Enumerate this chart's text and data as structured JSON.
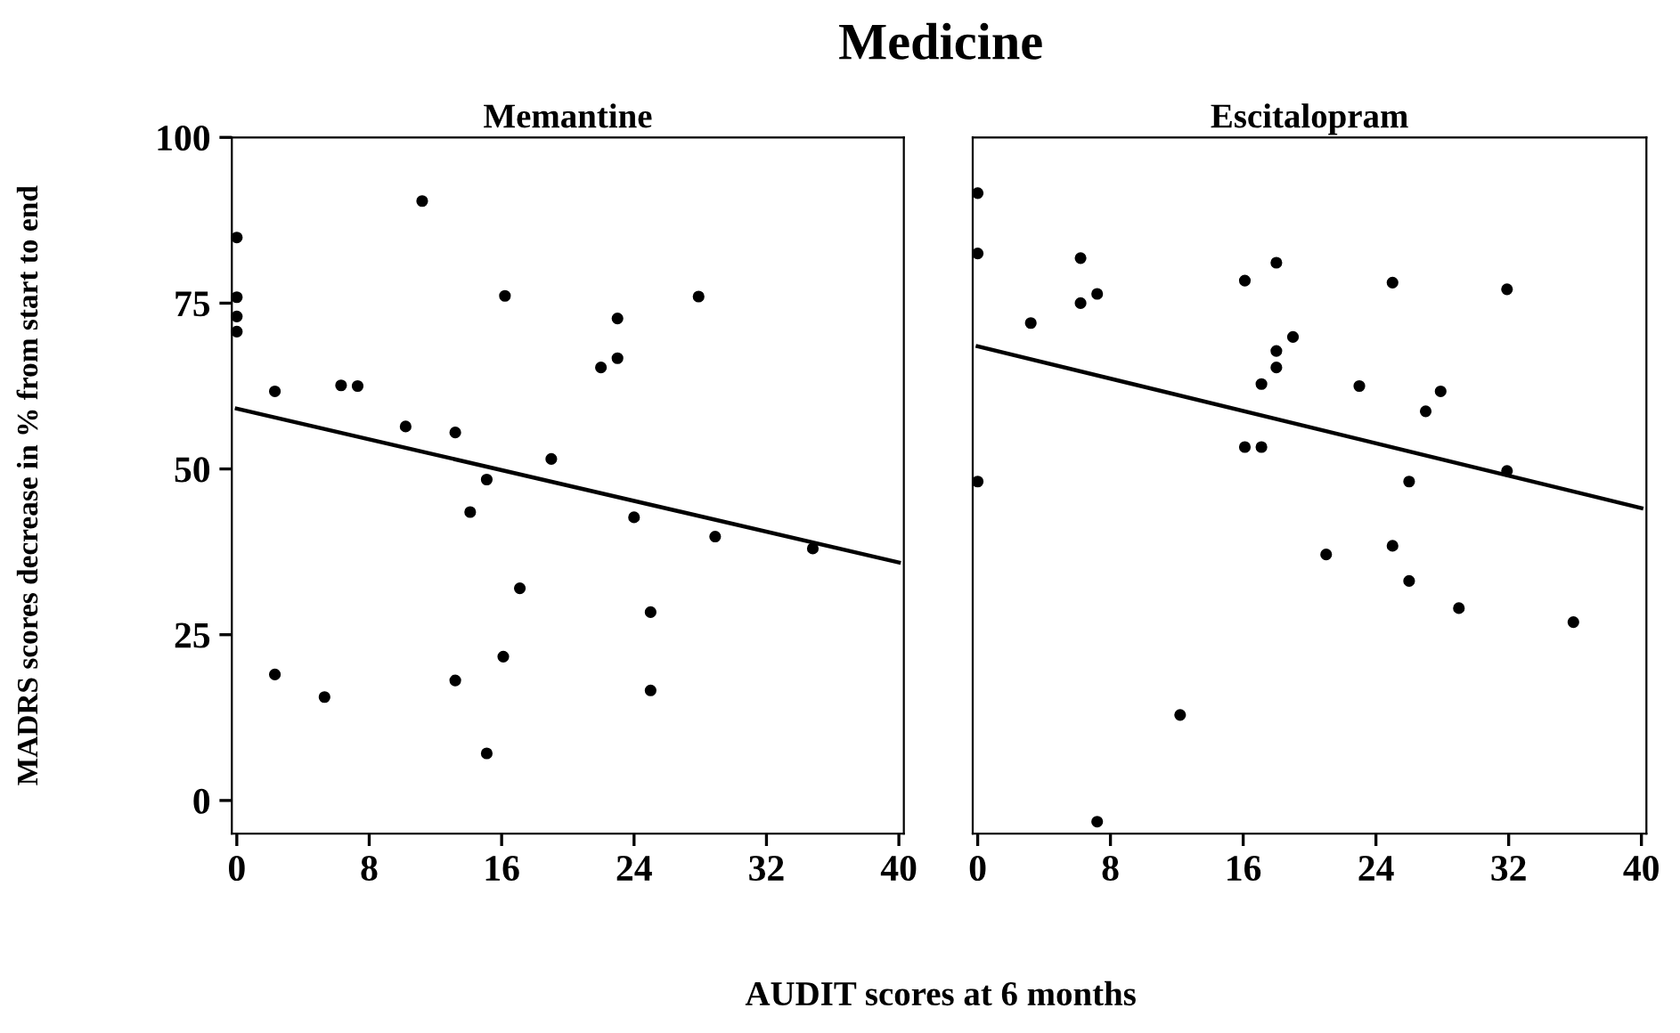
{
  "chart_data": [
    {
      "type": "scatter",
      "title": "Memantine",
      "xlabel": "AUDIT scores at 6 months",
      "ylabel": "MADRS scores decrease in % from start to end",
      "annotations": [
        "Medicine"
      ],
      "xlim": [
        -0.3,
        40.3
      ],
      "ylim": [
        -5,
        100
      ],
      "xticks": [
        0,
        8,
        16,
        24,
        32,
        40
      ],
      "yticks": [
        0,
        25,
        50,
        75,
        100
      ],
      "grid": false,
      "legend": false,
      "series": [
        {
          "marker": "circle",
          "color": "#000000",
          "x": [
            11.2,
            0,
            0,
            0,
            0,
            16.2,
            27.9,
            23.0,
            23.0,
            22.0,
            2.3,
            6.3,
            7.3,
            10.2,
            13.2,
            19.0,
            15.1,
            14.1,
            24.0,
            28.9,
            34.8,
            17.1,
            25.0,
            16.1,
            2.3,
            13.2,
            5.3,
            25.0,
            15.1
          ],
          "values": [
            90.4,
            84.9,
            75.9,
            73.0,
            70.7,
            76.1,
            76.0,
            72.7,
            66.7,
            65.3,
            61.7,
            62.6,
            62.5,
            56.4,
            55.5,
            51.5,
            48.4,
            43.5,
            42.7,
            39.8,
            38.0,
            32.0,
            28.4,
            21.7,
            19.0,
            18.1,
            15.6,
            16.6,
            7.1
          ]
        },
        {
          "type": "line",
          "color": "#000000",
          "line_style": "solid",
          "x": [
            0,
            40
          ],
          "values": [
            59.1,
            35.9
          ]
        }
      ]
    },
    {
      "type": "scatter",
      "title": "Escitalopram",
      "xlim": [
        -0.3,
        40.3
      ],
      "ylim": [
        -5,
        100
      ],
      "xticks": [
        0,
        8,
        16,
        24,
        32,
        40
      ],
      "yticks": [
        0,
        25,
        50,
        75,
        100
      ],
      "tick_labels": "x",
      "grid": false,
      "legend": false,
      "series": [
        {
          "marker": "circle",
          "color": "#000000",
          "x": [
            0,
            0,
            0,
            6.2,
            6.2,
            7.2,
            3.2,
            16.1,
            18.0,
            25.0,
            31.9,
            19.0,
            18.0,
            18.0,
            17.1,
            23.0,
            27.9,
            27.0,
            16.1,
            17.1,
            31.9,
            26.0,
            21.0,
            25.0,
            26.0,
            29.0,
            35.9,
            12.2,
            7.2
          ],
          "values": [
            91.6,
            82.5,
            48.1,
            81.8,
            75.0,
            76.4,
            72.0,
            78.4,
            81.1,
            78.1,
            77.1,
            69.9,
            67.8,
            65.3,
            62.8,
            62.5,
            61.7,
            58.7,
            53.3,
            53.3,
            49.7,
            48.1,
            37.1,
            38.4,
            33.1,
            29.0,
            26.9,
            12.9,
            -3.2
          ]
        },
        {
          "type": "line",
          "color": "#000000",
          "line_style": "solid",
          "x": [
            0,
            40
          ],
          "values": [
            68.5,
            44.1
          ]
        }
      ]
    }
  ]
}
